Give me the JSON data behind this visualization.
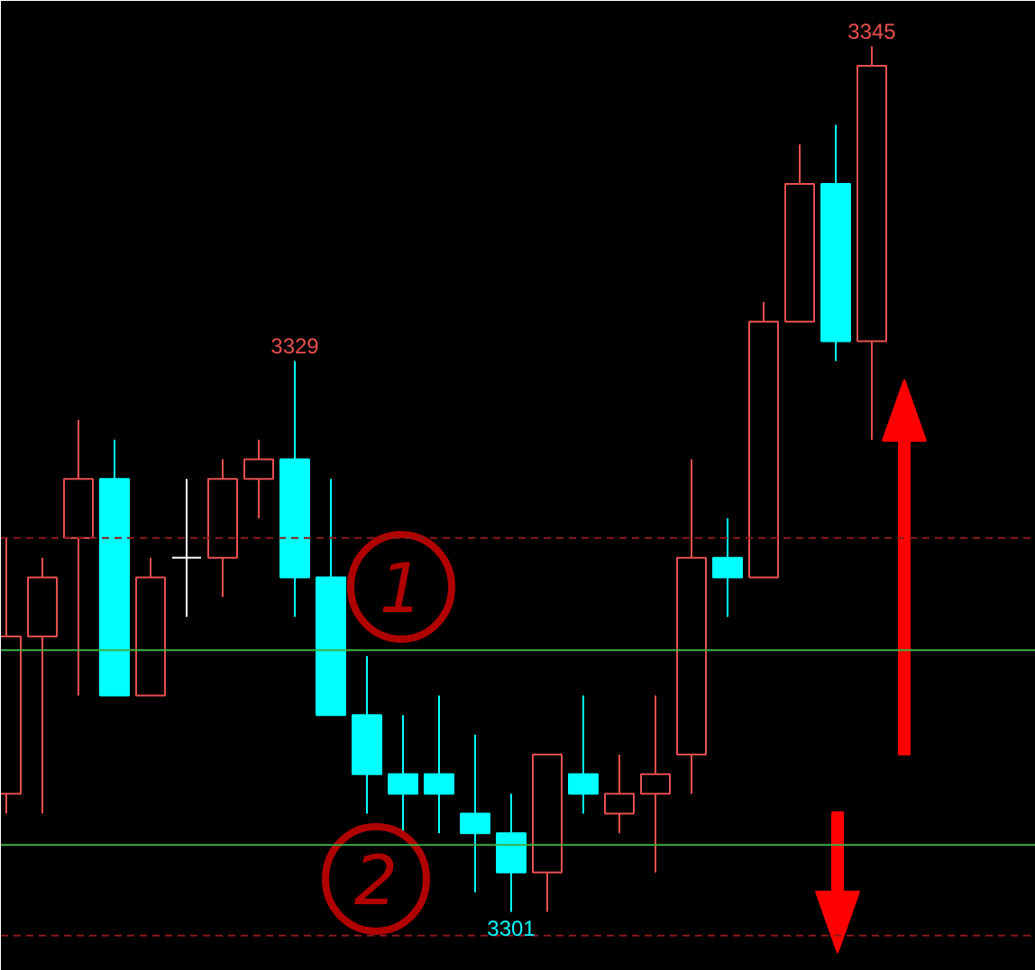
{
  "chart_data": {
    "type": "candlestick",
    "categories": [
      null,
      null,
      null,
      null,
      null,
      null,
      null,
      null,
      null,
      null,
      null,
      null,
      null,
      null,
      null,
      null,
      null,
      null,
      null,
      null,
      null,
      null,
      null,
      null,
      null
    ],
    "ohlc": [
      [
        3307,
        3320,
        3306,
        3315
      ],
      [
        3315,
        3319,
        3306,
        3318
      ],
      [
        3320,
        3326,
        3312,
        3323
      ],
      [
        3323,
        3325,
        3312,
        3312
      ],
      [
        3312,
        3319,
        3312,
        3318
      ],
      [
        3319,
        3323,
        3316,
        3319
      ],
      [
        3319,
        3324,
        3317,
        3323
      ],
      [
        3323,
        3325,
        3321,
        3324
      ],
      [
        3324,
        3329,
        3316,
        3318
      ],
      [
        3318,
        3323,
        3311,
        3311
      ],
      [
        3311,
        3314,
        3306,
        3308
      ],
      [
        3308,
        3311,
        3305,
        3307
      ],
      [
        3308,
        3312,
        3305,
        3307
      ],
      [
        3306,
        3310,
        3302,
        3305
      ],
      [
        3305,
        3307,
        3301,
        3303
      ],
      [
        3303,
        3309,
        3301,
        3309
      ],
      [
        3308,
        3312,
        3306,
        3307
      ],
      [
        3306,
        3309,
        3305,
        3307
      ],
      [
        3307,
        3312,
        3303,
        3308
      ],
      [
        3309,
        3324,
        3307,
        3319
      ],
      [
        3319,
        3321,
        3316,
        3318
      ],
      [
        3318,
        3332,
        3318,
        3331
      ],
      [
        3331,
        3340,
        3331,
        3338
      ],
      [
        3338,
        3341,
        3329,
        3330
      ],
      [
        3330,
        3345,
        3325,
        3344
      ]
    ],
    "colors": [
      "#e8504f",
      "#e8504f",
      "#e8504f",
      "#00ffff",
      "#e8504f",
      "#ffffff",
      "#e8504f",
      "#e8504f",
      "#00ffff",
      "#00ffff",
      "#00ffff",
      "#00ffff",
      "#00ffff",
      "#00ffff",
      "#00ffff",
      "#e8504f",
      "#00ffff",
      "#e8504f",
      "#e8504f",
      "#e8504f",
      "#00ffff",
      "#e8504f",
      "#e8504f",
      "#00ffff",
      "#e8504f"
    ],
    "ylim": [
      3298,
      3347.3
    ],
    "ref_lines": [
      {
        "axis": "y",
        "value": 3320,
        "color": "#8b1a1a",
        "line_style": "dashed"
      },
      {
        "axis": "y",
        "value": 3314.3,
        "color": "#3cb043",
        "line_style": "solid"
      },
      {
        "axis": "y",
        "value": 3304.4,
        "color": "#3cb043",
        "line_style": "solid"
      },
      {
        "axis": "y",
        "value": 3299.8,
        "color": "#8b1a1a",
        "line_style": "dashed"
      }
    ],
    "annotations": [
      {
        "text": "3345",
        "y": 3345
      },
      {
        "text": "3329",
        "y": 3329
      },
      {
        "text": "3301",
        "y": 3301
      },
      "1",
      "2"
    ],
    "grid": false
  }
}
